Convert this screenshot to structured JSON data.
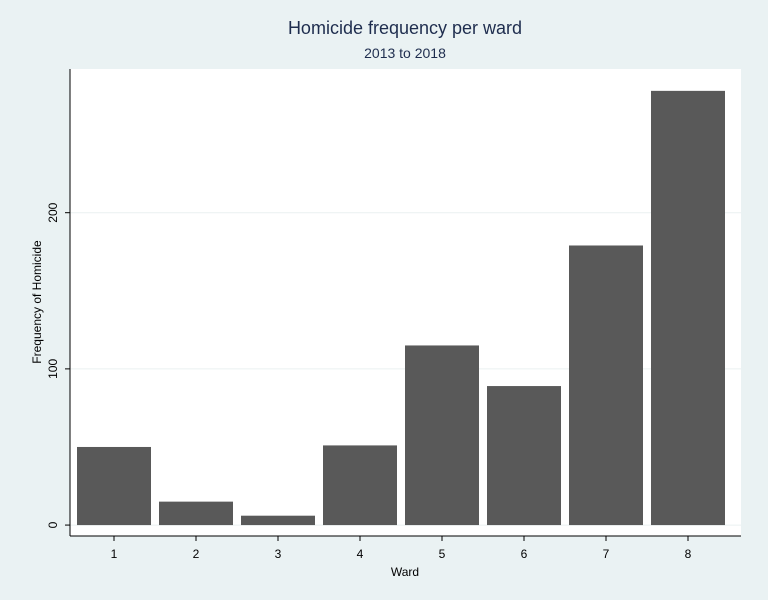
{
  "chart_data": {
    "type": "bar",
    "title": "Homicide frequency per ward",
    "subtitle": "2013 to 2018",
    "xlabel": "Ward",
    "ylabel": "Frequency of Homicide",
    "categories": [
      "1",
      "2",
      "3",
      "4",
      "5",
      "6",
      "7",
      "8"
    ],
    "values": [
      50,
      15,
      6,
      51,
      115,
      89,
      179,
      278
    ],
    "ylim": [
      -7,
      292
    ],
    "yticks": [
      0,
      100,
      200
    ],
    "grid": true,
    "bar_color": "#595959",
    "plot_background": "#ffffff",
    "page_background": "#eaf2f3",
    "title_color": "#1e2d4e"
  }
}
